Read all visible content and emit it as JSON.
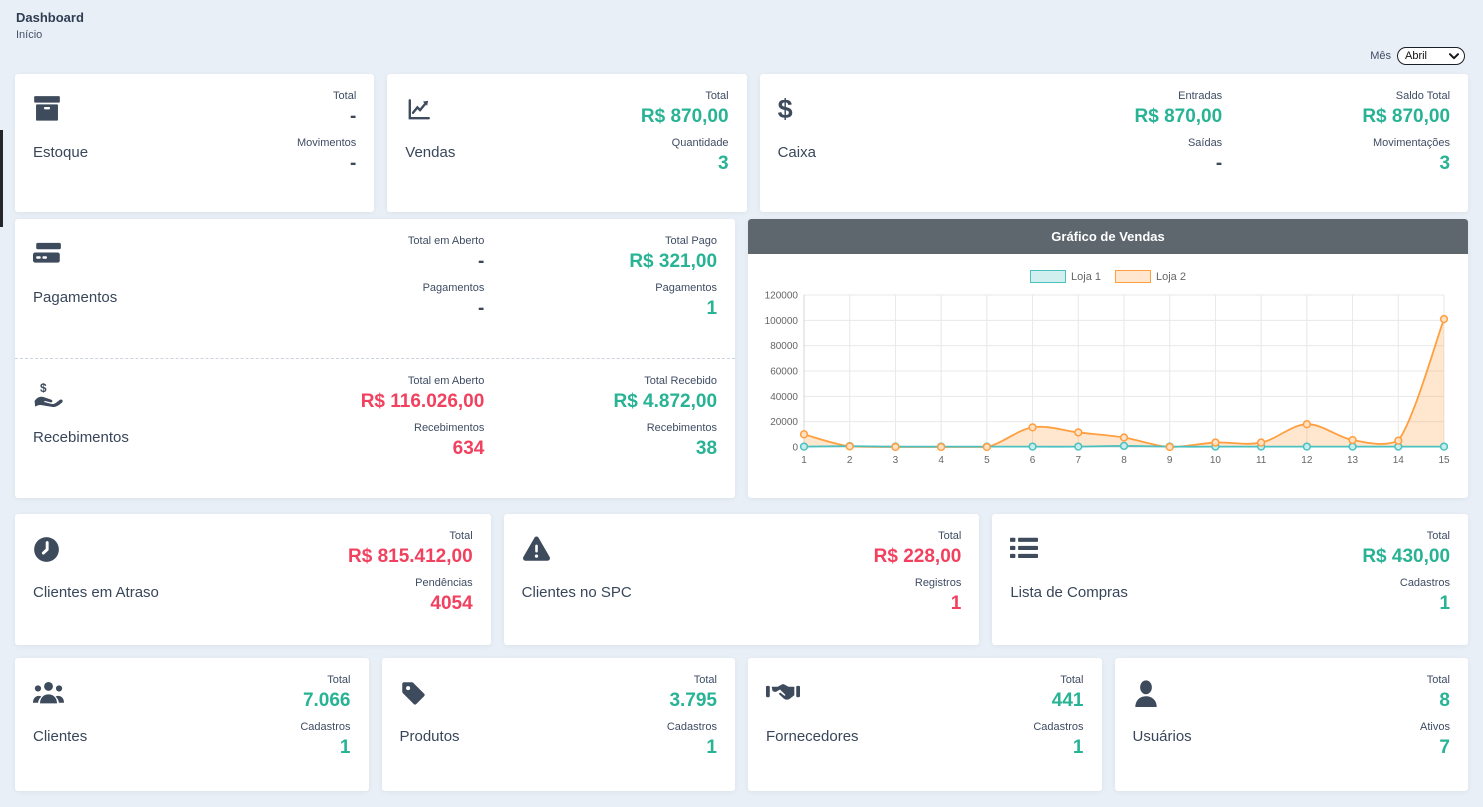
{
  "header": {
    "title": "Dashboard",
    "breadcrumb": "Início"
  },
  "filter": {
    "label": "Mês",
    "selected": "Abril"
  },
  "cards": {
    "estoque": {
      "title": "Estoque",
      "icon": "box-icon",
      "s1_label": "Total",
      "s1_value": "-",
      "s2_label": "Movimentos",
      "s2_value": "-"
    },
    "vendas": {
      "title": "Vendas",
      "icon": "chart-line-icon",
      "s1_label": "Total",
      "s1_value": "R$ 870,00",
      "s2_label": "Quantidade",
      "s2_value": "3"
    },
    "caixa": {
      "title": "Caixa",
      "icon": "dollar-icon",
      "c1_s1_label": "Entradas",
      "c1_s1_value": "R$ 870,00",
      "c1_s2_label": "Saídas",
      "c1_s2_value": "-",
      "c2_s1_label": "Saldo Total",
      "c2_s1_value": "R$ 870,00",
      "c2_s2_label": "Movimentações",
      "c2_s2_value": "3"
    },
    "pagamentos": {
      "title": "Pagamentos",
      "icon": "credit-card-icon",
      "c1_s1_label": "Total em Aberto",
      "c1_s1_value": "-",
      "c1_s2_label": "Pagamentos",
      "c1_s2_value": "-",
      "c2_s1_label": "Total Pago",
      "c2_s1_value": "R$ 321,00",
      "c2_s2_label": "Pagamentos",
      "c2_s2_value": "1"
    },
    "recebimentos": {
      "title": "Recebimentos",
      "icon": "hand-dollar-icon",
      "c1_s1_label": "Total em Aberto",
      "c1_s1_value": "R$ 116.026,00",
      "c1_s2_label": "Recebimentos",
      "c1_s2_value": "634",
      "c2_s1_label": "Total Recebido",
      "c2_s1_value": "R$ 4.872,00",
      "c2_s2_label": "Recebimentos",
      "c2_s2_value": "38"
    },
    "clientes_atraso": {
      "title": "Clientes em Atraso",
      "icon": "clock-icon",
      "s1_label": "Total",
      "s1_value": "R$ 815.412,00",
      "s2_label": "Pendências",
      "s2_value": "4054"
    },
    "clientes_spc": {
      "title": "Clientes no SPC",
      "icon": "warning-icon",
      "s1_label": "Total",
      "s1_value": "R$ 228,00",
      "s2_label": "Registros",
      "s2_value": "1"
    },
    "lista_compras": {
      "title": "Lista de Compras",
      "icon": "list-icon",
      "s1_label": "Total",
      "s1_value": "R$ 430,00",
      "s2_label": "Cadastros",
      "s2_value": "1"
    },
    "clientes": {
      "title": "Clientes",
      "icon": "users-icon",
      "s1_label": "Total",
      "s1_value": "7.066",
      "s2_label": "Cadastros",
      "s2_value": "1"
    },
    "produtos": {
      "title": "Produtos",
      "icon": "tag-icon",
      "s1_label": "Total",
      "s1_value": "3.795",
      "s2_label": "Cadastros",
      "s2_value": "1"
    },
    "fornecedores": {
      "title": "Fornecedores",
      "icon": "handshake-icon",
      "s1_label": "Total",
      "s1_value": "441",
      "s2_label": "Cadastros",
      "s2_value": "1"
    },
    "usuarios": {
      "title": "Usuários",
      "icon": "user-icon",
      "s1_label": "Total",
      "s1_value": "8",
      "s2_label": "Ativos",
      "s2_value": "7"
    }
  },
  "chart": {
    "title": "Gráfico de Vendas"
  },
  "chart_data": {
    "type": "line",
    "title": "Gráfico de Vendas",
    "categories": [
      "1",
      "2",
      "3",
      "4",
      "5",
      "6",
      "7",
      "8",
      "9",
      "10",
      "11",
      "12",
      "13",
      "14",
      "15"
    ],
    "series": [
      {
        "name": "Loja 1",
        "color": "#4bc0c0",
        "values": [
          300,
          700,
          300,
          300,
          300,
          300,
          300,
          870,
          300,
          300,
          300,
          300,
          300,
          300,
          300
        ]
      },
      {
        "name": "Loja 2",
        "color": "#ff9f40",
        "values": [
          10000,
          500,
          0,
          0,
          0,
          15500,
          11500,
          7500,
          0,
          3500,
          3500,
          18000,
          5500,
          5000,
          101000
        ]
      }
    ],
    "ylim": [
      0,
      120000
    ],
    "yticks": [
      0,
      20000,
      40000,
      60000,
      80000,
      100000,
      120000
    ],
    "legend_position": "top",
    "grid": true,
    "area_fill": true
  },
  "colors": {
    "green": "#27b394",
    "red": "#f1415f",
    "dark": "#3c4858",
    "chart_header_bg": "#5e666e"
  }
}
